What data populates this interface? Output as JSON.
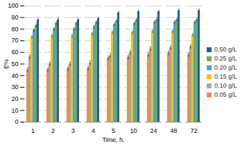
{
  "chart_data": {
    "type": "bar",
    "x_label": "Time, h.",
    "y_label": "E%",
    "categories": [
      "1",
      "2",
      "3",
      "4",
      "5",
      "10",
      "24",
      "48",
      "72"
    ],
    "series": [
      {
        "name": "0.05 g/L",
        "color": "#e0915e",
        "values": [
          45,
          45,
          46,
          46,
          55,
          56,
          58,
          59,
          58
        ],
        "errors": [
          2,
          2,
          2,
          2,
          2,
          2,
          2,
          2,
          2
        ]
      },
      {
        "name": "0.10 g/L",
        "color": "#a5a5a5",
        "values": [
          56,
          50,
          50,
          51,
          57,
          60,
          63,
          64,
          65
        ],
        "errors": [
          2,
          2,
          2,
          2,
          2,
          2,
          2,
          2,
          2
        ]
      },
      {
        "name": "0.15 g/L",
        "color": "#ffc000",
        "values": [
          73,
          74,
          74,
          76,
          77,
          77,
          78,
          78,
          75
        ],
        "errors": [
          1.5,
          1.5,
          1.5,
          1.5,
          1.5,
          1.5,
          1.5,
          1.5,
          1.5
        ]
      },
      {
        "name": "0.20 g/L",
        "color": "#5b9bd5",
        "values": [
          79,
          80,
          80,
          82,
          84,
          85,
          86,
          86,
          86
        ],
        "errors": [
          1.5,
          1.5,
          1.5,
          1.5,
          1.5,
          1.5,
          1.5,
          1.5,
          1.5
        ]
      },
      {
        "name": "0.25 g/L",
        "color": "#70ad47",
        "values": [
          83,
          85,
          85,
          86,
          87,
          88,
          88,
          88,
          88
        ],
        "errors": [
          1.5,
          1.5,
          1.5,
          1.5,
          1.5,
          1.5,
          1.5,
          1.5,
          1.5
        ]
      },
      {
        "name": "0.50 g/L",
        "color": "#255e91",
        "values": [
          88,
          88,
          88,
          89,
          94,
          95,
          95,
          96,
          96
        ],
        "errors": [
          1.5,
          1.5,
          1.5,
          1.5,
          1.5,
          1.5,
          1.5,
          1.5,
          1.5
        ]
      }
    ],
    "ylim": [
      0,
      100
    ],
    "yticks": [
      0,
      10,
      20,
      30,
      40,
      50,
      60,
      70,
      80,
      90,
      100
    ],
    "grid": true,
    "legend": "right"
  }
}
